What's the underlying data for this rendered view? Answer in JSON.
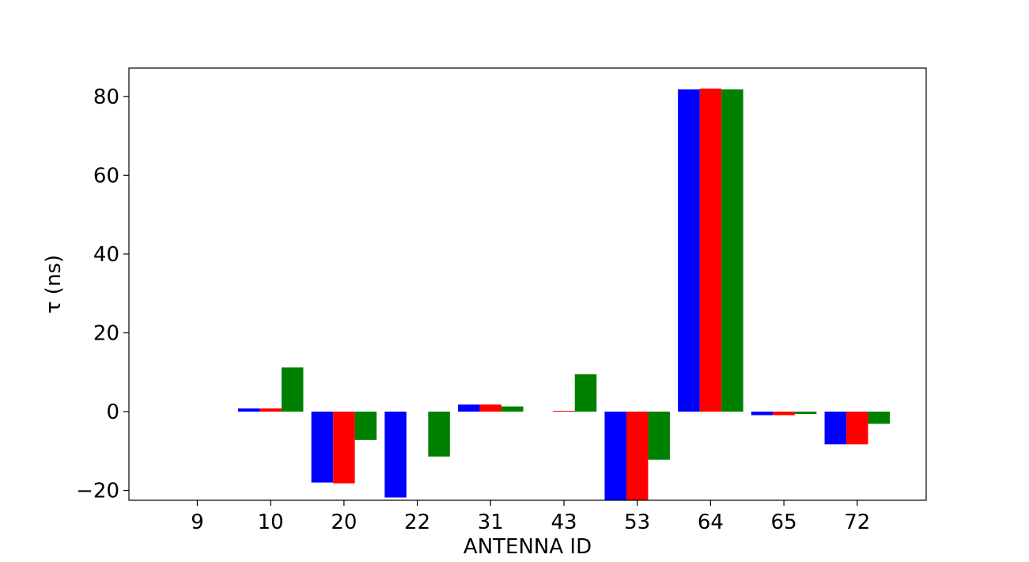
{
  "chart_data": {
    "type": "bar",
    "title": "",
    "xlabel": "ANTENNA ID",
    "ylabel": "τ (ns)",
    "categories": [
      "9",
      "10",
      "20",
      "22",
      "31",
      "43",
      "53",
      "64",
      "65",
      "72"
    ],
    "ylim": [
      -22.5,
      87.2
    ],
    "yticks": [
      -20,
      0,
      20,
      40,
      60,
      80
    ],
    "ytick_labels": [
      "−20",
      "0",
      "20",
      "40",
      "60",
      "80"
    ],
    "grid": false,
    "legend": null,
    "series": [
      {
        "color": "#0000ff",
        "values": [
          0,
          0.8,
          -18.0,
          -21.8,
          1.8,
          0,
          -23.0,
          81.8,
          -0.9,
          -8.3
        ]
      },
      {
        "color": "#ff0000",
        "values": [
          0,
          0.8,
          -18.2,
          0,
          1.8,
          0.2,
          -23.0,
          82.0,
          -0.9,
          -8.3
        ]
      },
      {
        "color": "#008000",
        "values": [
          0,
          11.2,
          -7.2,
          -11.4,
          1.3,
          9.5,
          -12.2,
          81.8,
          -0.6,
          -3.1
        ]
      }
    ]
  }
}
